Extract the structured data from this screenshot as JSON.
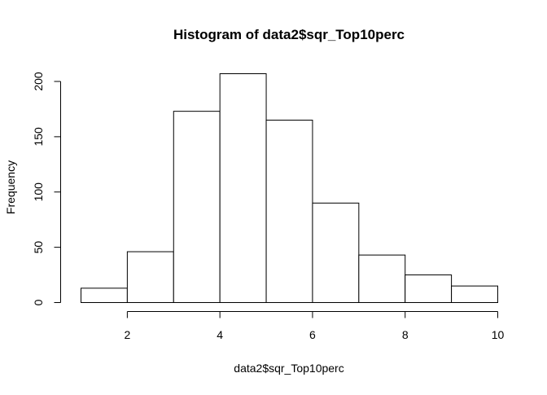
{
  "chart_data": {
    "type": "bar",
    "title": "Histogram of data2$sqr_Top10perc",
    "xlabel": "data2$sqr_Top10perc",
    "ylabel": "Frequency",
    "bins": [
      {
        "from": 1,
        "to": 2,
        "count": 13
      },
      {
        "from": 2,
        "to": 3,
        "count": 46
      },
      {
        "from": 3,
        "to": 4,
        "count": 173
      },
      {
        "from": 4,
        "to": 5,
        "count": 207
      },
      {
        "from": 5,
        "to": 6,
        "count": 165
      },
      {
        "from": 6,
        "to": 7,
        "count": 90
      },
      {
        "from": 7,
        "to": 8,
        "count": 43
      },
      {
        "from": 8,
        "to": 9,
        "count": 25
      },
      {
        "from": 9,
        "to": 10,
        "count": 15
      }
    ],
    "x_ticks": [
      2,
      4,
      6,
      8,
      10
    ],
    "y_ticks": [
      0,
      50,
      100,
      150,
      200
    ],
    "xlim": [
      1,
      10
    ],
    "ylim": [
      0,
      207
    ],
    "grid": false,
    "bar_fill": "#ffffff",
    "bar_stroke": "#000000"
  }
}
